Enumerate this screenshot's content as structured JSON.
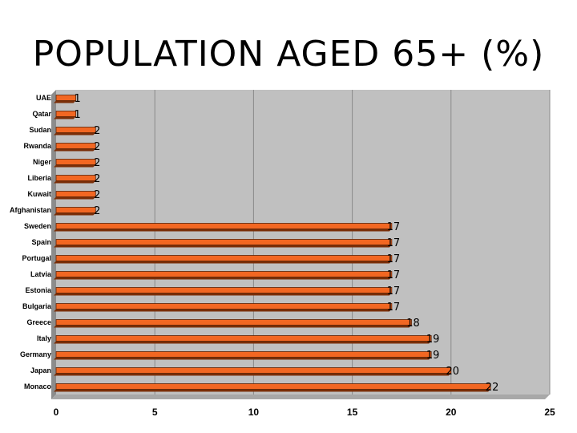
{
  "slide": {
    "title": "POPULATION AGED 65+ (%)"
  },
  "colors": {
    "bar": "#f26722",
    "bar_shadow": "#7a2e08",
    "plot_bg": "#c0c0c0",
    "wall": "#8c8c8c",
    "gridline": "#8a8a8a"
  },
  "chart_data": {
    "type": "bar",
    "orientation": "horizontal",
    "title": "POPULATION AGED 65+ (%)",
    "categories": [
      "UAE",
      "Qatar",
      "Sudan",
      "Rwanda",
      "Niger",
      "Liberia",
      "Kuwait",
      "Afghanistan",
      "Sweden",
      "Spain",
      "Portugal",
      "Latvia",
      "Estonia",
      "Bulgaria",
      "Greece",
      "Italy",
      "Germany",
      "Japan",
      "Monaco"
    ],
    "values": [
      1,
      1,
      2,
      2,
      2,
      2,
      2,
      2,
      17,
      17,
      17,
      17,
      17,
      17,
      18,
      19,
      19,
      20,
      22
    ],
    "xlim": [
      0,
      25
    ],
    "xticks": [
      0,
      5,
      10,
      15,
      20,
      25
    ],
    "grid": true,
    "legend": "none"
  }
}
